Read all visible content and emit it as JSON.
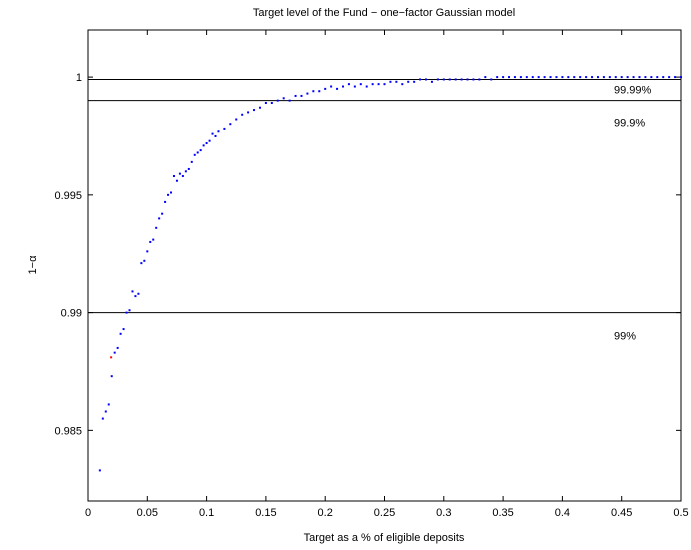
{
  "chart_data": {
    "type": "scatter",
    "title": "Target level of the Fund − one−factor Gaussian model",
    "xlabel": "Target as a % of eligible deposits",
    "ylabel": "1−α",
    "xlim": [
      0,
      0.5
    ],
    "ylim": [
      0.982,
      1.002
    ],
    "x_ticks": [
      0,
      0.05,
      0.1,
      0.15,
      0.2,
      0.25,
      0.3,
      0.35,
      0.4,
      0.45,
      0.5
    ],
    "x_tick_labels": [
      "0",
      "0.05",
      "0.1",
      "0.15",
      "0.2",
      "0.25",
      "0.3",
      "0.35",
      "0.4",
      "0.45",
      "0.5"
    ],
    "y_ticks": [
      0.985,
      0.99,
      0.995,
      1
    ],
    "y_tick_labels": [
      "0.985",
      "0.99",
      "0.995",
      "1"
    ],
    "grid": false,
    "marker_color": "#0000ff",
    "highlight_color": "#ff0000",
    "reference_lines": [
      {
        "y": 0.9999,
        "label": "99.99%"
      },
      {
        "y": 0.999,
        "label": "99.9%"
      },
      {
        "y": 0.99,
        "label": "99%"
      }
    ],
    "highlight_point": {
      "x": 0.0195,
      "y": 0.9881
    },
    "series": [
      {
        "x": [
          0.01,
          0.0125,
          0.015,
          0.0175,
          0.02,
          0.0225,
          0.025,
          0.0275,
          0.03,
          0.0325,
          0.035,
          0.0375,
          0.04,
          0.0425,
          0.045,
          0.0475,
          0.05,
          0.0525,
          0.055,
          0.0575,
          0.06,
          0.0625,
          0.065,
          0.0675,
          0.07,
          0.0725,
          0.075,
          0.0775,
          0.08,
          0.0825,
          0.085,
          0.0875,
          0.09,
          0.0925,
          0.095,
          0.0975,
          0.1,
          0.1025,
          0.105,
          0.1075,
          0.11,
          0.115,
          0.12,
          0.125,
          0.13,
          0.135,
          0.14,
          0.145,
          0.15,
          0.155,
          0.16,
          0.165,
          0.17,
          0.175,
          0.18,
          0.185,
          0.19,
          0.195,
          0.2,
          0.205,
          0.21,
          0.215,
          0.22,
          0.225,
          0.23,
          0.235,
          0.24,
          0.245,
          0.25,
          0.255,
          0.26,
          0.265,
          0.27,
          0.275,
          0.28,
          0.285,
          0.29,
          0.295,
          0.3,
          0.305,
          0.31,
          0.315,
          0.32,
          0.325,
          0.33,
          0.335,
          0.34,
          0.345,
          0.35,
          0.355,
          0.36,
          0.365,
          0.37,
          0.375,
          0.38,
          0.385,
          0.39,
          0.395,
          0.4,
          0.405,
          0.41,
          0.415,
          0.42,
          0.425,
          0.43,
          0.435,
          0.44,
          0.445,
          0.45,
          0.455,
          0.46,
          0.465,
          0.47,
          0.475,
          0.48,
          0.485,
          0.49,
          0.495,
          0.5
        ],
        "y": [
          0.9833,
          0.9855,
          0.9858,
          0.9861,
          0.9873,
          0.9883,
          0.9885,
          0.9891,
          0.9893,
          0.99,
          0.9901,
          0.9909,
          0.9907,
          0.9908,
          0.9921,
          0.9922,
          0.9926,
          0.993,
          0.9931,
          0.9936,
          0.994,
          0.9942,
          0.9947,
          0.995,
          0.9951,
          0.9958,
          0.9956,
          0.9959,
          0.9958,
          0.996,
          0.9961,
          0.9964,
          0.9967,
          0.9968,
          0.9969,
          0.9971,
          0.9972,
          0.9973,
          0.9976,
          0.9975,
          0.9977,
          0.9978,
          0.998,
          0.9982,
          0.9984,
          0.9985,
          0.9986,
          0.9987,
          0.9989,
          0.9989,
          0.999,
          0.9991,
          0.999,
          0.9992,
          0.9992,
          0.9993,
          0.9994,
          0.9994,
          0.9995,
          0.9996,
          0.9995,
          0.9996,
          0.9997,
          0.9996,
          0.9997,
          0.9996,
          0.9997,
          0.9997,
          0.9997,
          0.9998,
          0.9998,
          0.9997,
          0.9998,
          0.9998,
          0.9999,
          0.9999,
          0.9998,
          0.9999,
          0.9999,
          0.9999,
          0.9999,
          0.9999,
          0.9999,
          0.9999,
          0.9999,
          1.0,
          0.9999,
          1.0,
          1.0,
          1.0,
          1.0,
          1.0,
          1.0,
          1.0,
          1.0,
          1.0,
          1.0,
          1.0,
          1.0,
          1.0,
          1.0,
          1.0,
          1.0,
          1.0,
          1.0,
          1.0,
          1.0,
          1.0,
          1.0,
          1.0,
          1.0,
          1.0,
          1.0,
          1.0,
          1.0,
          1.0,
          1.0,
          1.0,
          1.0
        ]
      }
    ]
  }
}
